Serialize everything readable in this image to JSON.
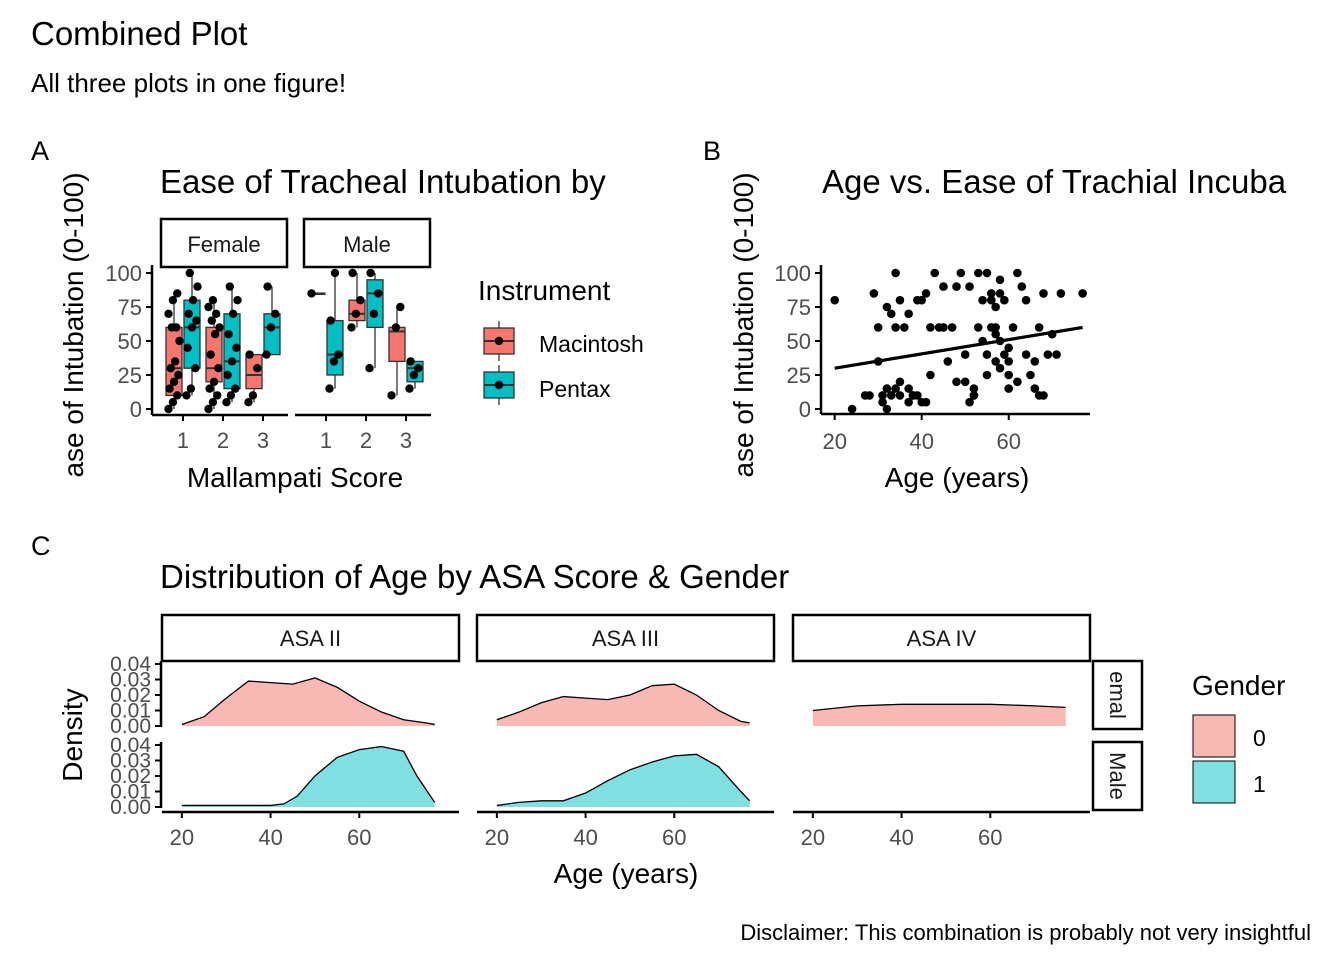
{
  "figure": {
    "title": "Combined Plot",
    "subtitle": "All three plots in one figure!",
    "caption": "Disclaimer: This combination is probably not very insightful",
    "tags": [
      "A",
      "B",
      "C"
    ]
  },
  "colors": {
    "macintosh": "#F8766D",
    "pentax": "#00BFC4",
    "gender0": "#F8B9B5",
    "gender1": "#7FDFE1",
    "axis": "#000000",
    "tick_text": "#4D4D4D"
  },
  "chart_data": [
    {
      "type": "box",
      "title": "Ease of Tracheal Intubation by",
      "xlabel": "Mallampati Score",
      "ylabel": "ase of Intubation (0-100)",
      "ylim": [
        0,
        100
      ],
      "y_ticks": [
        0,
        25,
        50,
        75,
        100
      ],
      "categories": [
        "1",
        "2",
        "3"
      ],
      "facets": [
        "Female",
        "Male"
      ],
      "legend": {
        "title": "Instrument",
        "position": "right",
        "entries": [
          "Macintosh",
          "Pentax"
        ]
      },
      "series": [
        {
          "name": "Macintosh",
          "boxes": [
            {
              "facet": "Female",
              "x": "1",
              "min": 0,
              "q1": 10,
              "median": 30,
              "q3": 60,
              "max": 85
            },
            {
              "facet": "Female",
              "x": "2",
              "min": 0,
              "q1": 20,
              "median": 30,
              "q3": 60,
              "max": 80
            },
            {
              "facet": "Female",
              "x": "3",
              "min": 5,
              "q1": 15,
              "median": 25,
              "q3": 40,
              "max": 40
            },
            {
              "facet": "Male",
              "x": "1",
              "min": 85,
              "q1": 85,
              "median": 85,
              "q3": 85,
              "max": 85
            },
            {
              "facet": "Male",
              "x": "2",
              "min": 60,
              "q1": 65,
              "median": 70,
              "q3": 80,
              "max": 100
            },
            {
              "facet": "Male",
              "x": "3",
              "min": 10,
              "q1": 35,
              "median": 57,
              "q3": 60,
              "max": 75
            }
          ],
          "points": [
            {
              "facet": "Female",
              "x": "1",
              "y": [
                0,
                5,
                10,
                15,
                20,
                25,
                30,
                35,
                50,
                60,
                60,
                70,
                80,
                85
              ]
            },
            {
              "facet": "Female",
              "x": "2",
              "y": [
                0,
                5,
                10,
                15,
                20,
                30,
                40,
                55,
                60,
                65,
                70,
                75,
                80
              ]
            },
            {
              "facet": "Female",
              "x": "3",
              "y": [
                5,
                10,
                30,
                40
              ]
            },
            {
              "facet": "Male",
              "x": "1",
              "y": [
                85
              ]
            },
            {
              "facet": "Male",
              "x": "2",
              "y": [
                60,
                70,
                80,
                100
              ]
            },
            {
              "facet": "Male",
              "x": "3",
              "y": [
                10,
                60,
                75
              ]
            }
          ]
        },
        {
          "name": "Pentax",
          "boxes": [
            {
              "facet": "Female",
              "x": "1",
              "min": 10,
              "q1": 30,
              "median": 60,
              "q3": 80,
              "max": 100
            },
            {
              "facet": "Female",
              "x": "2",
              "min": 5,
              "q1": 15,
              "median": 35,
              "q3": 70,
              "max": 90
            },
            {
              "facet": "Female",
              "x": "3",
              "min": 40,
              "q1": 40,
              "median": 60,
              "q3": 70,
              "max": 90
            },
            {
              "facet": "Male",
              "x": "1",
              "min": 15,
              "q1": 25,
              "median": 40,
              "q3": 65,
              "max": 100
            },
            {
              "facet": "Male",
              "x": "2",
              "min": 30,
              "q1": 60,
              "median": 85,
              "q3": 95,
              "max": 100
            },
            {
              "facet": "Male",
              "x": "3",
              "min": 15,
              "q1": 20,
              "median": 30,
              "q3": 35,
              "max": 35
            }
          ],
          "points": [
            {
              "facet": "Female",
              "x": "1",
              "y": [
                10,
                15,
                30,
                45,
                60,
                65,
                70,
                80,
                90,
                100
              ]
            },
            {
              "facet": "Female",
              "x": "2",
              "y": [
                5,
                10,
                15,
                25,
                35,
                45,
                55,
                70,
                80,
                90
              ]
            },
            {
              "facet": "Female",
              "x": "3",
              "y": [
                40,
                60,
                70,
                90
              ]
            },
            {
              "facet": "Male",
              "x": "1",
              "y": [
                15,
                35,
                40,
                65,
                100
              ]
            },
            {
              "facet": "Male",
              "x": "2",
              "y": [
                30,
                70,
                85,
                100
              ]
            },
            {
              "facet": "Male",
              "x": "3",
              "y": [
                15,
                25,
                30,
                35
              ]
            }
          ]
        }
      ]
    },
    {
      "type": "scatter",
      "title": "Age vs. Ease of Trachial Incuba",
      "xlabel": "Age (years)",
      "ylabel": "ase of Intubation (0-100)",
      "xlim": [
        18,
        78
      ],
      "ylim": [
        0,
        100
      ],
      "x_ticks": [
        20,
        40,
        60
      ],
      "y_ticks": [
        0,
        25,
        50,
        75,
        100
      ],
      "trend": {
        "x": [
          20,
          77
        ],
        "y": [
          30,
          60
        ]
      },
      "points": [
        [
          20,
          80
        ],
        [
          24,
          0
        ],
        [
          27,
          10
        ],
        [
          28,
          10
        ],
        [
          29,
          85
        ],
        [
          30,
          60
        ],
        [
          30,
          35
        ],
        [
          31,
          10
        ],
        [
          31,
          5
        ],
        [
          32,
          0
        ],
        [
          32,
          75
        ],
        [
          32,
          15
        ],
        [
          33,
          70
        ],
        [
          33,
          10
        ],
        [
          34,
          100
        ],
        [
          34,
          15
        ],
        [
          34,
          60
        ],
        [
          35,
          80
        ],
        [
          35,
          20
        ],
        [
          35,
          10
        ],
        [
          36,
          60
        ],
        [
          37,
          5
        ],
        [
          37,
          70
        ],
        [
          37,
          15
        ],
        [
          38,
          10
        ],
        [
          38,
          10
        ],
        [
          39,
          80
        ],
        [
          39,
          10
        ],
        [
          40,
          5
        ],
        [
          40,
          80
        ],
        [
          41,
          5
        ],
        [
          41,
          85
        ],
        [
          42,
          60
        ],
        [
          42,
          25
        ],
        [
          43,
          100
        ],
        [
          44,
          60
        ],
        [
          45,
          90
        ],
        [
          45,
          60
        ],
        [
          46,
          35
        ],
        [
          47,
          60
        ],
        [
          48,
          20
        ],
        [
          48,
          90
        ],
        [
          49,
          100
        ],
        [
          50,
          40
        ],
        [
          50,
          20
        ],
        [
          51,
          90
        ],
        [
          51,
          5
        ],
        [
          52,
          10
        ],
        [
          52,
          15
        ],
        [
          52,
          10
        ],
        [
          53,
          100
        ],
        [
          53,
          60
        ],
        [
          54,
          80
        ],
        [
          54,
          50
        ],
        [
          55,
          100
        ],
        [
          55,
          40
        ],
        [
          55,
          25
        ],
        [
          56,
          80
        ],
        [
          56,
          85
        ],
        [
          56,
          60
        ],
        [
          57,
          75
        ],
        [
          57,
          60
        ],
        [
          57,
          55
        ],
        [
          57,
          35
        ],
        [
          58,
          95
        ],
        [
          58,
          85
        ],
        [
          58,
          50
        ],
        [
          58,
          30
        ],
        [
          59,
          40
        ],
        [
          59,
          80
        ],
        [
          60,
          45
        ],
        [
          60,
          35
        ],
        [
          60,
          25
        ],
        [
          60,
          15
        ],
        [
          61,
          60
        ],
        [
          62,
          100
        ],
        [
          62,
          20
        ],
        [
          63,
          90
        ],
        [
          64,
          80
        ],
        [
          64,
          40
        ],
        [
          65,
          25
        ],
        [
          66,
          15
        ],
        [
          66,
          35
        ],
        [
          67,
          60
        ],
        [
          68,
          85
        ],
        [
          69,
          40
        ],
        [
          70,
          55
        ],
        [
          71,
          40
        ],
        [
          72,
          85
        ],
        [
          77,
          85
        ],
        [
          67,
          10
        ],
        [
          68,
          10
        ]
      ]
    },
    {
      "type": "area",
      "title": "Distribution of Age by ASA Score & Gender",
      "xlabel": "Age (years)",
      "ylabel": "Density",
      "xlim": [
        18,
        80
      ],
      "ylim": [
        0,
        0.04
      ],
      "x_ticks": [
        20,
        40,
        60
      ],
      "y_ticks": [
        0.0,
        0.01,
        0.02,
        0.03,
        0.04
      ],
      "col_facets": [
        "ASA II",
        "ASA III",
        "ASA IV"
      ],
      "row_facets": [
        "emal",
        "Male"
      ],
      "legend": {
        "title": "Gender",
        "position": "right",
        "entries": [
          "0",
          "1"
        ]
      },
      "series": [
        {
          "name": "0",
          "facet_row": "emal",
          "curves": [
            {
              "facet": "ASA II",
              "x": [
                20,
                25,
                30,
                35,
                40,
                45,
                50,
                55,
                60,
                65,
                70,
                75,
                77
              ],
              "y": [
                0.001,
                0.006,
                0.018,
                0.029,
                0.028,
                0.027,
                0.031,
                0.025,
                0.016,
                0.009,
                0.004,
                0.002,
                0.001
              ]
            },
            {
              "facet": "ASA III",
              "x": [
                20,
                25,
                30,
                35,
                40,
                45,
                50,
                55,
                60,
                65,
                70,
                75,
                77
              ],
              "y": [
                0.004,
                0.009,
                0.015,
                0.019,
                0.018,
                0.017,
                0.02,
                0.026,
                0.027,
                0.02,
                0.01,
                0.003,
                0.002
              ]
            },
            {
              "facet": "ASA IV",
              "x": [
                20,
                30,
                40,
                50,
                60,
                70,
                77
              ],
              "y": [
                0.01,
                0.013,
                0.014,
                0.014,
                0.014,
                0.013,
                0.012
              ]
            }
          ]
        },
        {
          "name": "1",
          "facet_row": "Male",
          "curves": [
            {
              "facet": "ASA II",
              "x": [
                20,
                30,
                40,
                43,
                46,
                50,
                55,
                60,
                65,
                70,
                73,
                77
              ],
              "y": [
                0.001,
                0.001,
                0.001,
                0.002,
                0.007,
                0.02,
                0.032,
                0.037,
                0.039,
                0.036,
                0.02,
                0.003
              ]
            },
            {
              "facet": "ASA III",
              "x": [
                20,
                25,
                30,
                35,
                40,
                45,
                50,
                55,
                60,
                65,
                70,
                75,
                77
              ],
              "y": [
                0.001,
                0.003,
                0.004,
                0.004,
                0.009,
                0.017,
                0.024,
                0.029,
                0.033,
                0.034,
                0.026,
                0.01,
                0.004
              ]
            }
          ]
        }
      ]
    }
  ]
}
